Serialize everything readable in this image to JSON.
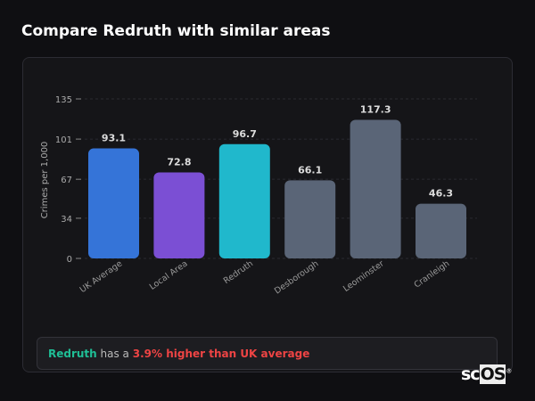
{
  "title": "Compare Redruth with similar areas",
  "chart_data": {
    "type": "bar",
    "categories": [
      "UK Average",
      "Local Area",
      "Redruth",
      "Desborough",
      "Leominster",
      "Cranleigh"
    ],
    "values": [
      93.1,
      72.8,
      96.7,
      66.1,
      117.3,
      46.3
    ],
    "colors": [
      "#3574d8",
      "#7b4fd4",
      "#20b8cc",
      "#5a6577",
      "#5a6577",
      "#5a6577"
    ],
    "ylabel": "Crimes per 1,000",
    "yticks": [
      0,
      34,
      67,
      101,
      135
    ],
    "ylim": [
      0,
      135
    ],
    "grid": true
  },
  "note": {
    "area": "Redruth",
    "mid": " has a ",
    "highlight": "3.9% higher than UK average"
  },
  "logo": {
    "a": "sc",
    "b": "OS"
  }
}
